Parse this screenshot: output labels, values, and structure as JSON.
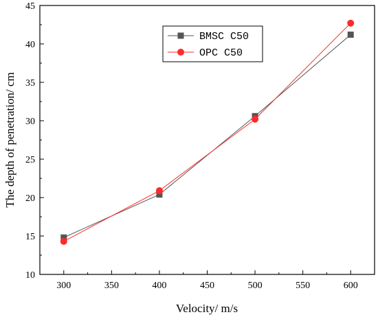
{
  "chart_data": {
    "type": "line",
    "xlabel": "Velocity/ m/s",
    "ylabel": "The depth of penetration/ cm",
    "xlim": [
      275,
      625
    ],
    "ylim": [
      10,
      45
    ],
    "xticks": [
      300,
      350,
      400,
      450,
      500,
      550,
      600
    ],
    "yticks": [
      10,
      15,
      20,
      25,
      30,
      35,
      40,
      45
    ],
    "grid": false,
    "legend_position": "top-center",
    "series": [
      {
        "name": "BMSC C50",
        "color": "#555555",
        "marker": "square",
        "x": [
          300,
          400,
          500,
          600
        ],
        "y": [
          14.8,
          20.4,
          30.6,
          41.2
        ]
      },
      {
        "name": "OPC C50",
        "color": "#ff2a2a",
        "marker": "circle",
        "x": [
          300,
          400,
          500,
          600
        ],
        "y": [
          14.3,
          20.9,
          30.2,
          42.7
        ]
      }
    ]
  }
}
